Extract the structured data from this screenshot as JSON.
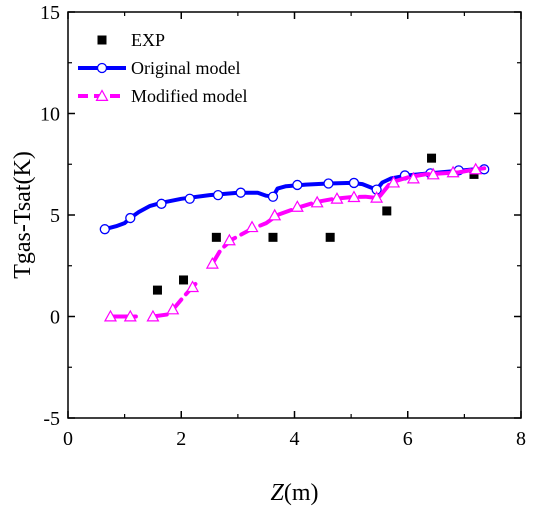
{
  "chart_data": {
    "type": "line",
    "xlabel_italic": "Z",
    "xlabel_unit": "(m)",
    "ylabel": "Tgas-Tsat(K)",
    "xlim": [
      0,
      8
    ],
    "ylim": [
      -5,
      15
    ],
    "x_ticks": [
      "0",
      "2",
      "4",
      "6",
      "8"
    ],
    "y_ticks": [
      "-5",
      "0",
      "5",
      "10",
      "15"
    ],
    "grid": false,
    "legend_position": "top-left",
    "series": [
      {
        "name": "EXP",
        "kind": "scatter",
        "color": "#000000",
        "marker": "filled-square",
        "points": [
          [
            1.58,
            1.3
          ],
          [
            2.04,
            1.8
          ],
          [
            2.62,
            3.9
          ],
          [
            3.62,
            3.9
          ],
          [
            4.63,
            3.9
          ],
          [
            5.63,
            5.2
          ],
          [
            6.42,
            7.8
          ],
          [
            7.17,
            7.0
          ]
        ]
      },
      {
        "name": "Original model",
        "kind": "line",
        "color": "#0000ff",
        "line_style": "solid",
        "marker": "open-circle",
        "curve": [
          [
            0.65,
            4.3
          ],
          [
            0.85,
            4.45
          ],
          [
            1.0,
            4.6
          ],
          [
            1.1,
            4.85
          ],
          [
            1.25,
            5.15
          ],
          [
            1.45,
            5.45
          ],
          [
            1.65,
            5.6
          ],
          [
            2.0,
            5.8
          ],
          [
            2.5,
            5.98
          ],
          [
            3.0,
            6.1
          ],
          [
            3.35,
            6.1
          ],
          [
            3.5,
            5.95
          ],
          [
            3.62,
            5.9
          ],
          [
            3.7,
            6.3
          ],
          [
            3.85,
            6.42
          ],
          [
            4.2,
            6.5
          ],
          [
            4.6,
            6.55
          ],
          [
            5.0,
            6.58
          ],
          [
            5.2,
            6.52
          ],
          [
            5.4,
            6.3
          ],
          [
            5.45,
            6.25
          ],
          [
            5.55,
            6.6
          ],
          [
            5.7,
            6.8
          ],
          [
            6.0,
            6.95
          ],
          [
            6.5,
            7.08
          ],
          [
            7.0,
            7.2
          ],
          [
            7.38,
            7.3
          ]
        ],
        "markers": [
          [
            0.65,
            4.3
          ],
          [
            1.1,
            4.85
          ],
          [
            1.65,
            5.55
          ],
          [
            2.15,
            5.8
          ],
          [
            2.65,
            5.98
          ],
          [
            3.05,
            6.1
          ],
          [
            3.62,
            5.9
          ],
          [
            4.05,
            6.48
          ],
          [
            4.6,
            6.55
          ],
          [
            5.05,
            6.58
          ],
          [
            5.45,
            6.25
          ],
          [
            5.95,
            6.95
          ],
          [
            6.4,
            7.05
          ],
          [
            6.9,
            7.2
          ],
          [
            7.35,
            7.25
          ]
        ]
      },
      {
        "name": "Modified model",
        "kind": "line",
        "color": "#ff00ff",
        "line_style": "dashed",
        "marker": "open-triangle",
        "curve": [
          [
            0.8,
            0.0
          ],
          [
            1.1,
            0.0
          ],
          [
            1.2,
            0.0
          ]
        ],
        "curve2": [
          [
            1.5,
            0.0
          ],
          [
            1.75,
            0.1
          ],
          [
            1.9,
            0.5
          ],
          [
            2.05,
            1.0
          ],
          [
            2.25,
            1.6
          ]
        ],
        "curve3": [
          [
            2.55,
            2.6
          ],
          [
            2.7,
            3.3
          ],
          [
            2.9,
            3.8
          ],
          [
            3.2,
            4.25
          ],
          [
            3.5,
            4.6
          ],
          [
            3.7,
            5.0
          ],
          [
            3.9,
            5.2
          ],
          [
            4.1,
            5.4
          ],
          [
            4.4,
            5.65
          ],
          [
            4.7,
            5.8
          ],
          [
            5.0,
            5.88
          ],
          [
            5.25,
            5.9
          ],
          [
            5.4,
            5.85
          ],
          [
            5.5,
            5.9
          ],
          [
            5.7,
            6.6
          ],
          [
            6.0,
            6.85
          ],
          [
            6.3,
            7.0
          ],
          [
            6.6,
            7.05
          ],
          [
            6.9,
            7.1
          ],
          [
            7.2,
            7.25
          ],
          [
            7.35,
            7.3
          ]
        ],
        "markers": [
          [
            0.75,
            0.0
          ],
          [
            1.1,
            0.0
          ],
          [
            1.5,
            0.0
          ],
          [
            1.85,
            0.35
          ],
          [
            2.2,
            1.45
          ],
          [
            2.55,
            2.6
          ],
          [
            2.85,
            3.75
          ],
          [
            3.25,
            4.4
          ],
          [
            3.65,
            4.98
          ],
          [
            4.05,
            5.4
          ],
          [
            4.4,
            5.62
          ],
          [
            4.75,
            5.8
          ],
          [
            5.05,
            5.88
          ],
          [
            5.45,
            5.85
          ],
          [
            5.75,
            6.6
          ],
          [
            6.1,
            6.8
          ],
          [
            6.45,
            7.0
          ],
          [
            6.8,
            7.1
          ],
          [
            7.2,
            7.25
          ]
        ]
      }
    ]
  }
}
